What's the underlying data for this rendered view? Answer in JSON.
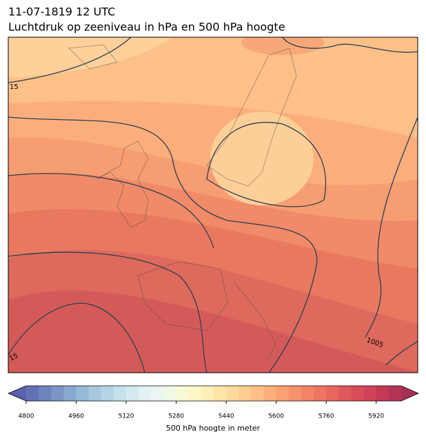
{
  "title": "11-07-1819 12 UTC",
  "subtitle": "Luchtdruk op zeeniveau in hPa en 500 hPa hoogte",
  "contour_labels": [
    "15",
    "15",
    "1005"
  ],
  "colorbar": {
    "label": "500 hPa hoogte in meter",
    "clim": [
      4800,
      6000
    ],
    "ticks": [
      4800,
      4960,
      5120,
      5280,
      5440,
      5600,
      5760,
      5920
    ],
    "colors": [
      "#6470b4",
      "#6f83bd",
      "#7c95c6",
      "#88a8cf",
      "#95b9d6",
      "#a6c9de",
      "#b5d5e5",
      "#c4e1ec",
      "#d3eaf1",
      "#e1f1f4",
      "#ebf6f0",
      "#f2f9e3",
      "#f8fad5",
      "#fdf7c7",
      "#fdefb7",
      "#fde5a8",
      "#fdda9b",
      "#fdcd8f",
      "#fcbf85",
      "#fbb07c",
      "#f9a174",
      "#f6926d",
      "#f28367",
      "#ed7561",
      "#e8665e",
      "#e0585a",
      "#d84c58",
      "#cf4257",
      "#c23a56",
      "#b53355"
    ],
    "under_color": "#5a62ac",
    "over_color": "#a93055"
  }
}
